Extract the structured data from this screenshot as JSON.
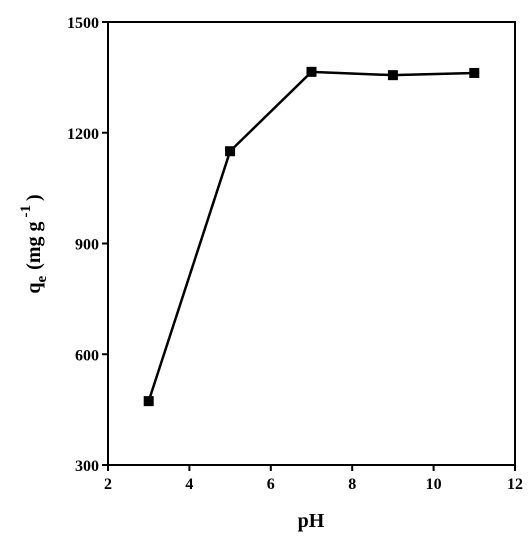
{
  "chart_data": {
    "type": "line",
    "xlabel": "pH",
    "ylabel": {
      "main": "q",
      "sub": "e",
      "unit": "(mg g",
      "sup": "-1",
      "close": ")"
    },
    "x": [
      3,
      5,
      7,
      9,
      11
    ],
    "series": [
      {
        "color": "#000000",
        "marker": "square",
        "values": [
          473,
          1150,
          1365,
          1356,
          1362
        ]
      }
    ],
    "xlim": [
      2,
      12
    ],
    "xticks": [
      2,
      4,
      6,
      8,
      10,
      12
    ],
    "ylim": [
      300,
      1500
    ],
    "yticks": [
      300,
      600,
      900,
      1200,
      1500
    ],
    "grid": false
  }
}
